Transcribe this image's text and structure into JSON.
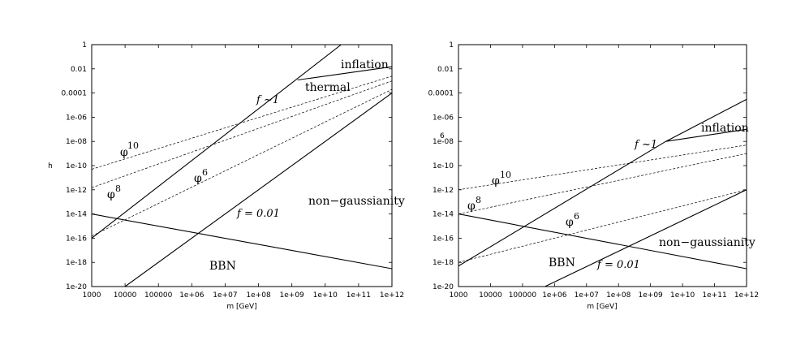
{
  "chart_data": [
    {
      "type": "line",
      "xlabel": "m [GeV]",
      "ylabel": "h",
      "xscale": "log",
      "yscale": "log",
      "xlim": [
        1000,
        1000000000000.0
      ],
      "ylim": [
        1e-20,
        1
      ],
      "xticks": [
        "1000",
        "10000",
        "100000",
        "1e+06",
        "1e+07",
        "1e+08",
        "1e+09",
        "1e+10",
        "1e+11",
        "1e+12"
      ],
      "yticks": [
        "1e-20",
        "1e-18",
        "1e-16",
        "1e-14",
        "1e-12",
        "1e-10",
        "1e-08",
        "1e-06",
        "0.0001",
        "0.01",
        "1"
      ],
      "series": [
        {
          "name": "f~1",
          "style": "solid",
          "x": [
            1000,
            30000000000.0
          ],
          "y": [
            1e-16,
            1
          ]
        },
        {
          "name": "f = 0.01",
          "style": "solid",
          "x": [
            10000,
            1000000000000.0
          ],
          "y": [
            1e-20,
            0.0001
          ]
        },
        {
          "name": "",
          "style": "solid",
          "x": [
            1000,
            1000000000000.0
          ],
          "y": [
            1e-14,
            3e-19
          ]
        },
        {
          "name": "inflation",
          "style": "solid",
          "x": [
            1500000000.0,
            1000000000000.0
          ],
          "y": [
            0.0012,
            0.015
          ]
        },
        {
          "name": "phi^10",
          "style": "dashed",
          "x": [
            1000,
            1000000000000.0
          ],
          "y": [
            5e-11,
            0.0025
          ]
        },
        {
          "name": "phi^8",
          "style": "dashed",
          "x": [
            1000,
            1000000000000.0
          ],
          "y": [
            1.5e-12,
            0.001
          ]
        },
        {
          "name": "phi^6",
          "style": "dashed",
          "x": [
            1000,
            1000000000000.0
          ],
          "y": [
            1.5e-16,
            0.0002
          ]
        }
      ],
      "labels": {
        "inflation": "inflation",
        "thermal": "thermal",
        "f1": "f ~1",
        "phi": "φ",
        "phi10_exp": "10",
        "phi8_exp": "8",
        "phi6_exp": "6",
        "nongauss": "non−gaussianity",
        "f001": "f = 0.01",
        "bbn": "BBN"
      }
    },
    {
      "type": "line",
      "xlabel": "m [GeV]",
      "ylabel": "",
      "xscale": "log",
      "yscale": "log",
      "xlim": [
        1000,
        1000000000000.0
      ],
      "ylim": [
        1e-20,
        1
      ],
      "xticks": [
        "1000",
        "10000",
        "100000",
        "1e+06",
        "1e+07",
        "1e+08",
        "1e+09",
        "1e+10",
        "1e+11",
        "1e+12"
      ],
      "yticks": [
        "1e-20",
        "1e-18",
        "1e-16",
        "1e-14",
        "1e-12",
        "1e-10",
        "1e-08",
        "1e-06",
        "0.0001",
        "0.01",
        "1"
      ],
      "series": [
        {
          "name": "f~1",
          "style": "solid",
          "x": [
            1000,
            3000000000.0
          ],
          "y": [
            5e-19,
            1e-08
          ]
        },
        {
          "name": "f = 0.01",
          "style": "solid",
          "x": [
            500000.0,
            1000000000000.0
          ],
          "y": [
            1e-20,
            1e-12
          ]
        },
        {
          "name": "",
          "style": "solid",
          "x": [
            3000000000.0,
            1000000000000.0
          ],
          "y": [
            1e-08,
            3e-05
          ]
        },
        {
          "name": "",
          "style": "solid",
          "x": [
            1000,
            1000000000000.0
          ],
          "y": [
            1e-14,
            3e-19
          ]
        },
        {
          "name": "inflation",
          "style": "solid",
          "x": [
            3000000000.0,
            1000000000000.0
          ],
          "y": [
            1e-08,
            1e-07
          ]
        },
        {
          "name": "phi^10",
          "style": "dashed",
          "x": [
            1000,
            1000000000000.0
          ],
          "y": [
            1e-12,
            5e-09
          ]
        },
        {
          "name": "phi^8",
          "style": "dashed",
          "x": [
            1000,
            1000000000000.0
          ],
          "y": [
            1e-14,
            1e-09
          ]
        },
        {
          "name": "phi^6",
          "style": "dashed",
          "x": [
            1000,
            1000000000000.0
          ],
          "y": [
            1e-18,
            1e-12
          ]
        }
      ],
      "labels": {
        "six": "6",
        "inflation": "inflation",
        "f1": "f ~1",
        "phi": "φ",
        "phi10_exp": "10",
        "phi8_exp": "8",
        "phi6_exp": "6",
        "nongauss": "non−gaussianity",
        "f001": "f = 0.01",
        "bbn": "BBN"
      }
    }
  ]
}
